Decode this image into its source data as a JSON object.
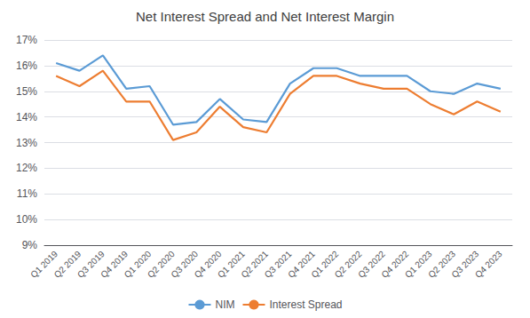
{
  "chart_data": {
    "type": "line",
    "title": "Net Interest Spread and Net Interest Margin",
    "categories": [
      "Q1 2019",
      "Q2 2019",
      "Q3 2019",
      "Q4 2019",
      "Q1 2020",
      "Q2 2020",
      "Q3 2020",
      "Q4 2020",
      "Q1 2021",
      "Q2 2021",
      "Q3 2021",
      "Q4 2021",
      "Q1 2022",
      "Q2 2022",
      "Q3 2022",
      "Q4 2022",
      "Q1 2023",
      "Q2 2023",
      "Q3 2023",
      "Q4 2023"
    ],
    "series": [
      {
        "name": "NIM",
        "color": "#5B9BD5",
        "values": [
          16.1,
          15.8,
          16.4,
          15.1,
          15.2,
          13.7,
          13.8,
          14.7,
          13.9,
          13.8,
          15.3,
          15.9,
          15.9,
          15.6,
          15.6,
          15.6,
          15.0,
          14.9,
          15.3,
          15.1
        ]
      },
      {
        "name": "Interest Spread",
        "color": "#ED7D31",
        "values": [
          15.6,
          15.2,
          15.8,
          14.6,
          14.6,
          13.1,
          13.4,
          14.4,
          13.6,
          13.4,
          14.9,
          15.6,
          15.6,
          15.3,
          15.1,
          15.1,
          14.5,
          14.1,
          14.6,
          14.2
        ]
      }
    ],
    "ylim": [
      9,
      17
    ],
    "yticks": [
      {
        "value": 9,
        "label": "9%"
      },
      {
        "value": 10,
        "label": "10%"
      },
      {
        "value": 11,
        "label": "11%"
      },
      {
        "value": 12,
        "label": "12%"
      },
      {
        "value": 13,
        "label": "13%"
      },
      {
        "value": 14,
        "label": "14%"
      },
      {
        "value": 15,
        "label": "15%"
      },
      {
        "value": 16,
        "label": "16%"
      },
      {
        "value": 17,
        "label": "17%"
      }
    ],
    "grid": true,
    "legend": "bottom",
    "marker": "none"
  }
}
